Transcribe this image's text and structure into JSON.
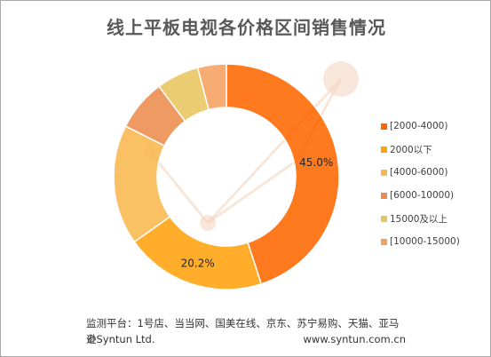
{
  "header": {
    "title": "线上平板电视各价格区间销售情况"
  },
  "chart_data": {
    "type": "donut",
    "title": "线上平板电视各价格区间销售情况",
    "start_angle_deg": 0,
    "direction": "clockwise",
    "legend_position": "right",
    "slices": [
      {
        "name": "[2000-4000)",
        "value": 45.0,
        "label": "45.0%",
        "color": "#ff6600"
      },
      {
        "name": "2000以下",
        "value": 20.2,
        "label": "20.2%",
        "color": "#ffa20c"
      },
      {
        "name": "[4000-6000)",
        "value": 17.2,
        "label": "",
        "color": "#f8b84e"
      },
      {
        "name": "[6000-10000)",
        "value": 7.4,
        "label": "",
        "color": "#ed8c4c"
      },
      {
        "name": "15000及以上",
        "value": 6.1,
        "label": "",
        "color": "#e8c560"
      },
      {
        "name": "[10000-15000)",
        "value": 4.1,
        "label": "",
        "color": "#f6a060"
      }
    ]
  },
  "footer": {
    "monitor_text": "监测平台：1号店、当当网、国美在线、京东、苏宁易购、天猫、亚马逊",
    "copyright": "©Syntun Ltd.",
    "website": "www.syntun.com.cn"
  }
}
